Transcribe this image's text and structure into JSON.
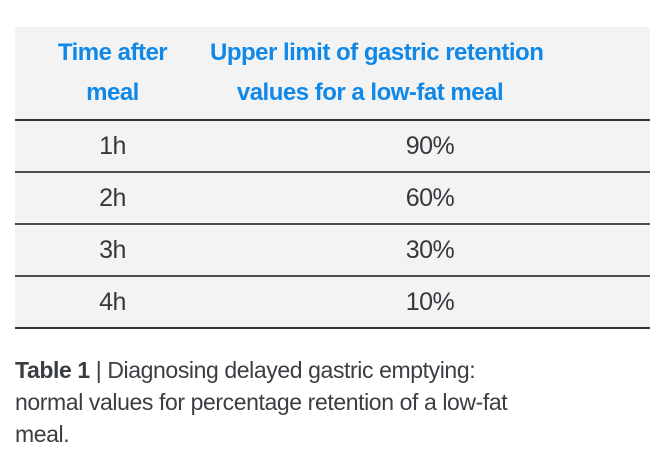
{
  "colors": {
    "accent_blue": "#1088e8",
    "row_background": "#f3f3f3",
    "rule_dark": "#353535",
    "rule_row": "#4d4d4d",
    "cell_text": "#35393e",
    "caption_text": "#3a3e43"
  },
  "table": {
    "header": {
      "col1_lines": [
        "Time after",
        "meal"
      ],
      "col2_lines": [
        "Upper limit of gastric retention",
        "values for a low-fat meal"
      ]
    },
    "rows": [
      {
        "time": "1h",
        "value": "90%"
      },
      {
        "time": "2h",
        "value": "60%"
      },
      {
        "time": "3h",
        "value": "30%"
      },
      {
        "time": "4h",
        "value": "10%"
      }
    ]
  },
  "caption": {
    "title": "Table 1",
    "separator": "|",
    "line1_text": "Diagnosing delayed gastric emptying:",
    "line2": "normal values for percentage retention of a low-fat",
    "line3": "meal."
  },
  "chart_data": {
    "type": "table",
    "title": "Table 1 | Diagnosing delayed gastric emptying: normal values for percentage retention of a low-fat meal.",
    "columns": [
      "Time after meal",
      "Upper limit of gastric retention values for a low-fat meal"
    ],
    "rows": [
      [
        "1h",
        "90%"
      ],
      [
        "2h",
        "60%"
      ],
      [
        "3h",
        "30%"
      ],
      [
        "4h",
        "10%"
      ]
    ]
  }
}
